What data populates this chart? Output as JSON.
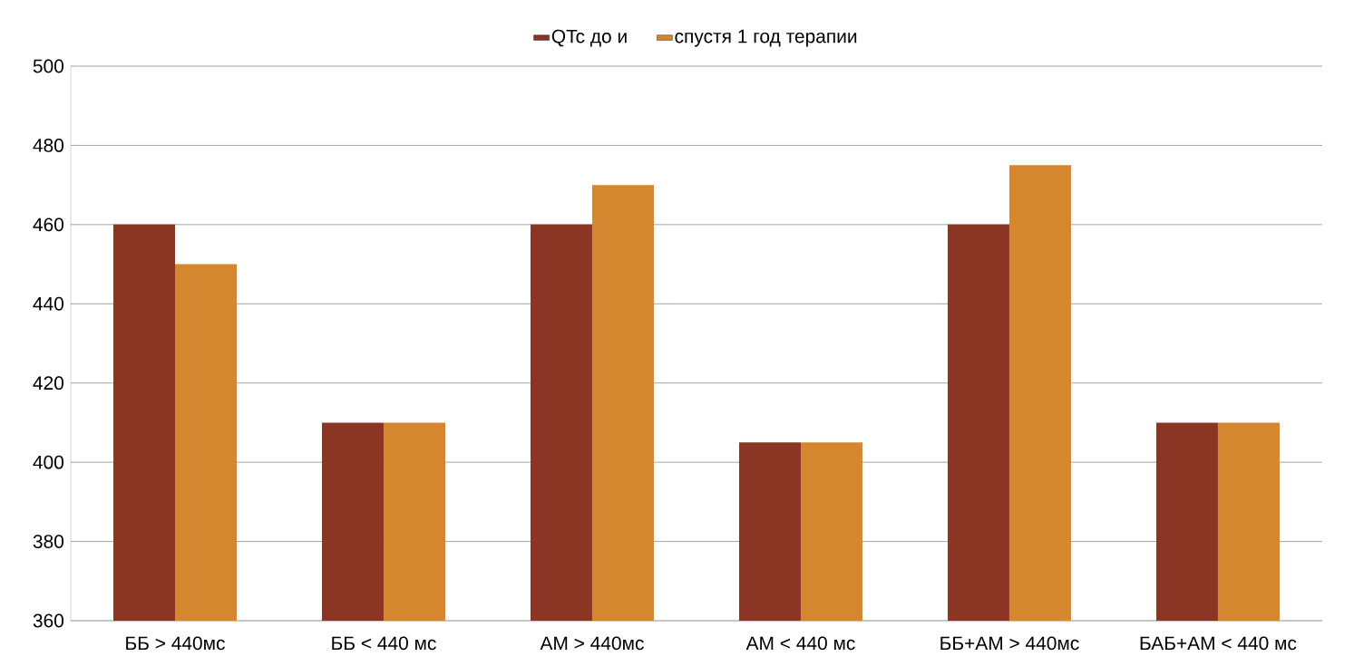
{
  "chart_data": {
    "type": "bar",
    "categories": [
      "ББ >  440мс",
      "ББ < 440 мс",
      "АМ >  440мс",
      "АМ < 440 мс",
      "ББ+АМ >  440мс",
      "БАБ+АМ < 440 мс"
    ],
    "series": [
      {
        "name": "QTc  до и",
        "color": "#8b3525",
        "values": [
          460,
          410,
          460,
          405,
          460,
          410
        ]
      },
      {
        "name": "спустя  1 год терапии",
        "color": "#d4872e",
        "values": [
          450,
          410,
          470,
          405,
          475,
          410
        ]
      }
    ],
    "ylim": [
      360,
      500
    ],
    "yticks": [
      360,
      380,
      400,
      420,
      440,
      460,
      480,
      500
    ],
    "grid": "y",
    "legend": "top"
  }
}
